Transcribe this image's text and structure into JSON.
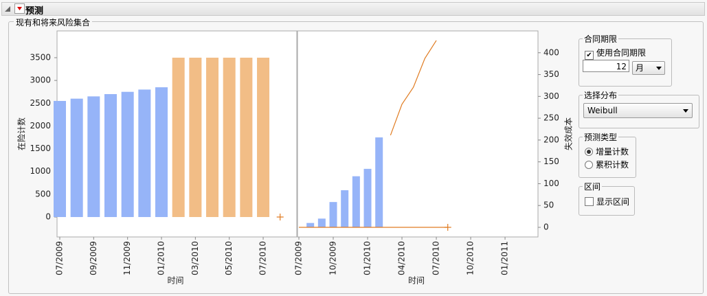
{
  "header": {
    "title": "预测"
  },
  "group": {
    "title": "现有和将来风险集合"
  },
  "chart_data": [
    {
      "type": "bar",
      "y_label": "在险计数",
      "x_label": "时间",
      "y_axis_side": "left",
      "categories": [
        "07/2009",
        null,
        "09/2009",
        null,
        "11/2009",
        null,
        "01/2010",
        null,
        "03/2010",
        null,
        "05/2010",
        null,
        "07/2010",
        null
      ],
      "ylim": [
        -437,
        4088
      ],
      "yticks": [
        0,
        500,
        1000,
        1500,
        2000,
        2500,
        3000,
        3500
      ],
      "series": [
        {
          "kind": "bar",
          "color": "#96b4f8",
          "values": [
            2550,
            2600,
            2650,
            2700,
            2750,
            2800,
            2850,
            null,
            null,
            null,
            null,
            null,
            null,
            null
          ]
        },
        {
          "kind": "bar",
          "color": "#f2bd86",
          "values": [
            null,
            null,
            null,
            null,
            null,
            null,
            null,
            3500,
            3500,
            3500,
            3500,
            3500,
            3500,
            null
          ]
        },
        {
          "kind": "plus",
          "color": "#e07b20",
          "values": [
            null,
            null,
            null,
            null,
            null,
            null,
            null,
            null,
            null,
            null,
            null,
            null,
            null,
            0
          ]
        }
      ]
    },
    {
      "type": "bar",
      "y_label": "失效成本",
      "x_label": "时间",
      "y_axis_side": "right",
      "categories": [
        "07/2009",
        null,
        null,
        "10/2009",
        null,
        null,
        "01/2010",
        null,
        null,
        "04/2010",
        null,
        null,
        "07/2010",
        null,
        null,
        "10/2010",
        null,
        null,
        "01/2011"
      ],
      "ylim": [
        -22,
        450
      ],
      "yticks": [
        0,
        50,
        100,
        150,
        200,
        250,
        300,
        350,
        400
      ],
      "series": [
        {
          "kind": "bar",
          "color": "#96b4f8",
          "values": [
            null,
            10,
            20,
            58,
            85,
            117,
            134,
            206,
            null,
            null,
            null,
            null,
            null,
            null,
            null,
            null,
            null,
            null,
            null
          ]
        },
        {
          "kind": "line",
          "color": "#e07b20",
          "values": [
            0,
            0,
            0,
            0,
            0,
            0,
            0,
            0,
            0,
            0,
            0,
            0,
            0,
            0,
            null,
            null,
            null,
            null,
            null
          ]
        },
        {
          "kind": "line",
          "color": "#e07b20",
          "values": [
            null,
            null,
            null,
            null,
            null,
            null,
            null,
            null,
            211,
            282,
            321,
            387,
            428,
            null,
            null,
            null,
            null,
            null,
            null
          ]
        },
        {
          "kind": "plus",
          "color": "#e07b20",
          "values": [
            null,
            null,
            null,
            null,
            null,
            null,
            null,
            null,
            null,
            null,
            null,
            null,
            null,
            0,
            null,
            null,
            null,
            null,
            null
          ]
        }
      ]
    }
  ],
  "controls": {
    "contract": {
      "title": "合同期限",
      "checkbox": "使用合同期限",
      "checked": true,
      "amount": "12",
      "unit": "月"
    },
    "distribution": {
      "title": "选择分布",
      "value": "Weibull"
    },
    "forecast_type": {
      "title": "预测类型",
      "options": [
        "增量计数",
        "累积计数"
      ],
      "selected": 0
    },
    "interval": {
      "title": "区间",
      "checkbox": "显示区间",
      "checked": false
    }
  }
}
